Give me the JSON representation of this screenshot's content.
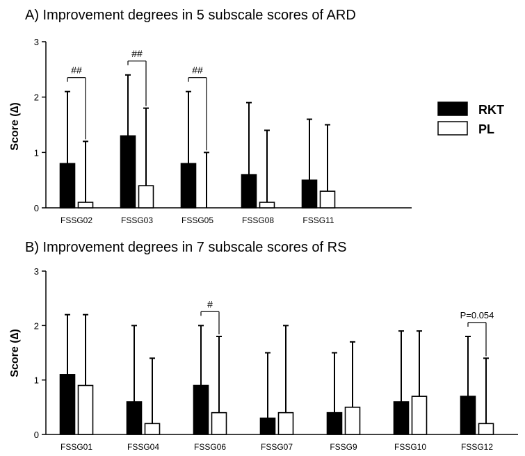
{
  "chart_data": [
    {
      "type": "bar",
      "title": "A) Improvement degrees in 5 subscale scores of ARD",
      "ylabel": "Score (∆)",
      "ylim": [
        0,
        3
      ],
      "yticks": [
        0,
        1,
        2,
        3
      ],
      "categories": [
        "FSSG02",
        "FSSG03",
        "FSSG05",
        "FSSG08",
        "FSSG11"
      ],
      "series": [
        {
          "name": "RKT",
          "values": [
            0.8,
            1.3,
            0.8,
            0.6,
            0.5
          ],
          "errors": [
            1.3,
            1.1,
            1.3,
            1.3,
            1.1
          ]
        },
        {
          "name": "PL",
          "values": [
            0.1,
            0.4,
            0.0,
            0.1,
            0.3
          ],
          "errors": [
            1.1,
            1.4,
            1.0,
            1.3,
            1.2
          ]
        }
      ],
      "significance": [
        {
          "category": "FSSG02",
          "label": "##"
        },
        {
          "category": "FSSG03",
          "label": "##"
        },
        {
          "category": "FSSG05",
          "label": "##"
        }
      ]
    },
    {
      "type": "bar",
      "title": "B) Improvement degrees in 7 subscale scores of RS",
      "ylabel": "Score (∆)",
      "ylim": [
        0,
        3
      ],
      "yticks": [
        0,
        1,
        2,
        3
      ],
      "categories": [
        "FSSG01",
        "FSSG04",
        "FSSG06",
        "FSSG07",
        "FSSG9",
        "FSSG10",
        "FSSG12"
      ],
      "series": [
        {
          "name": "RKT",
          "values": [
            1.1,
            0.6,
            0.9,
            0.3,
            0.4,
            0.6,
            0.7
          ],
          "errors": [
            1.1,
            1.4,
            1.1,
            1.2,
            1.1,
            1.3,
            1.1
          ]
        },
        {
          "name": "PL",
          "values": [
            0.9,
            0.2,
            0.4,
            0.4,
            0.5,
            0.7,
            0.2
          ],
          "errors": [
            1.3,
            1.2,
            1.4,
            1.6,
            1.2,
            1.2,
            1.2
          ]
        }
      ],
      "significance": [
        {
          "category": "FSSG06",
          "label": "#"
        },
        {
          "category": "FSSG12",
          "label": "P=0.054"
        }
      ]
    }
  ],
  "legend": {
    "entries": [
      {
        "label": "RKT",
        "fill": "#000000"
      },
      {
        "label": "PL",
        "fill": "#ffffff"
      }
    ]
  },
  "colors": {
    "rkt": "#000000",
    "pl": "#ffffff",
    "stroke": "#000000"
  }
}
